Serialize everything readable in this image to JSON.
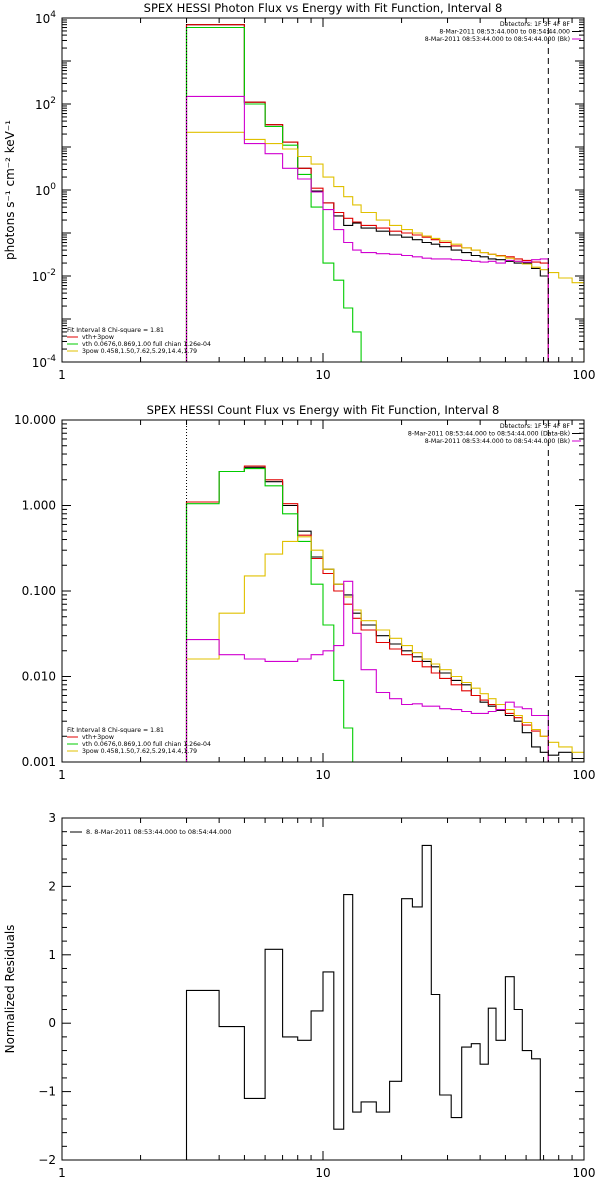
{
  "chart_data": [
    {
      "type": "line",
      "title": "SPEX HESSI Photon Flux vs Energy with Fit Function, Interval 8",
      "ylabel": "photons s⁻¹ cm⁻² keV⁻¹",
      "xscale": "log",
      "yscale": "log",
      "xlim": [
        1,
        100
      ],
      "ylim": [
        0.0001,
        10000
      ],
      "xticks": [
        {
          "v": 1,
          "label": "1"
        },
        {
          "v": 10,
          "label": "10"
        },
        {
          "v": 100,
          "label": "100"
        }
      ],
      "yticks": [
        {
          "v": 0.0001,
          "base": "10",
          "exp": "-4"
        },
        {
          "v": 0.01,
          "base": "10",
          "exp": "-2"
        },
        {
          "v": 1,
          "base": "10",
          "exp": "0"
        },
        {
          "v": 100,
          "base": "10",
          "exp": "2"
        },
        {
          "v": 10000,
          "base": "10",
          "exp": "4"
        }
      ],
      "vlines": [
        {
          "x": 3,
          "style": "dotted",
          "color": "#000000"
        },
        {
          "x": 73,
          "style": "dashed",
          "color": "#000000"
        }
      ],
      "legend_top": [
        "Detectors: 1F 3F 4F 8F",
        "8-Mar-2011 08:53:44.000 to 08:54:44.000",
        "8-Mar-2011 08:53:44.000 to 08:54:44.000 (Bk)"
      ],
      "legend_top_colors": [
        "",
        "#000000",
        "#d000d0"
      ],
      "legend_bottom": [
        {
          "text": "Fit Interval 8    Chi-square = 1.81",
          "color": ""
        },
        {
          "text": "vth+3pow",
          "color": "#e00000"
        },
        {
          "text": "vth 0.0676,0.869,1.00  full chian 1.26e-04",
          "color": "#00cc00"
        },
        {
          "text": "3pow 0.458,1.50,7.62,5.29,14.4,1.79",
          "color": "#e0c000"
        }
      ],
      "series": [
        {
          "color": "#000000",
          "edges": [
            3,
            4,
            5,
            6,
            7,
            8,
            9,
            10,
            11,
            12,
            13,
            14,
            16,
            18,
            20,
            22,
            24,
            26,
            28,
            31,
            34,
            37,
            40,
            43,
            46,
            50,
            54,
            58,
            63,
            68,
            73
          ],
          "values": [
            7000,
            7000,
            110,
            33,
            13,
            3.2,
            0.95,
            0.5,
            0.25,
            0.15,
            0.17,
            0.13,
            0.11,
            0.09,
            0.08,
            0.07,
            0.06,
            0.055,
            0.048,
            0.04,
            0.035,
            0.03,
            0.028,
            0.025,
            0.024,
            0.022,
            0.02,
            0.02,
            0.015,
            0.01
          ]
        },
        {
          "color": "#e00000",
          "edges": [
            3,
            4,
            5,
            6,
            7,
            8,
            9,
            10,
            11,
            12,
            13,
            14,
            16,
            18,
            20,
            22,
            24,
            26,
            28,
            31,
            34,
            37,
            40,
            43,
            46,
            50,
            54,
            58,
            63,
            68,
            73
          ],
          "values": [
            7000,
            7000,
            110,
            33,
            13,
            3.2,
            1.1,
            0.5,
            0.3,
            0.22,
            0.18,
            0.15,
            0.13,
            0.11,
            0.1,
            0.09,
            0.08,
            0.07,
            0.06,
            0.05,
            0.045,
            0.04,
            0.035,
            0.032,
            0.03,
            0.028,
            0.025,
            0.023,
            0.021,
            0.02
          ]
        },
        {
          "color": "#00cc00",
          "edges": [
            3,
            4,
            5,
            6,
            7,
            8,
            9,
            10,
            11,
            12,
            13,
            14,
            16
          ],
          "values": [
            6000,
            6000,
            100,
            30,
            11,
            2.3,
            0.4,
            0.02,
            0.008,
            0.0018,
            0.0005,
            0.0001
          ]
        },
        {
          "color": "#e0c000",
          "edges": [
            3,
            4,
            5,
            6,
            7,
            8,
            9,
            10,
            11,
            12,
            13,
            14,
            16,
            18,
            20,
            22,
            24,
            26,
            28,
            31,
            34,
            37,
            40,
            43,
            46,
            50,
            54,
            58,
            63,
            68,
            73,
            80,
            90,
            100
          ],
          "values": [
            22,
            22,
            15,
            12,
            9,
            6,
            4,
            2,
            1.2,
            0.7,
            0.45,
            0.3,
            0.2,
            0.15,
            0.12,
            0.1,
            0.085,
            0.075,
            0.065,
            0.055,
            0.045,
            0.04,
            0.035,
            0.032,
            0.029,
            0.026,
            0.022,
            0.019,
            0.016,
            0.014,
            0.012,
            0.009,
            0.007
          ]
        },
        {
          "color": "#d000d0",
          "edges": [
            3,
            4,
            5,
            6,
            7,
            8,
            9,
            10,
            11,
            12,
            13,
            14,
            16,
            18,
            20,
            22,
            24,
            26,
            28,
            31,
            34,
            37,
            40,
            43,
            46,
            50,
            54,
            58,
            63,
            68,
            73
          ],
          "values": [
            150,
            150,
            12,
            7,
            3.2,
            1.8,
            0.9,
            0.35,
            0.12,
            0.06,
            0.04,
            0.035,
            0.033,
            0.032,
            0.03,
            0.028,
            0.026,
            0.025,
            0.025,
            0.024,
            0.023,
            0.022,
            0.021,
            0.022,
            0.02,
            0.023,
            0.022,
            0.021,
            0.024,
            0.025
          ]
        }
      ]
    },
    {
      "type": "line",
      "title": "SPEX HESSI Count Flux vs Energy with Fit Function, Interval 8",
      "ylabel": "",
      "xscale": "log",
      "yscale": "log",
      "xlim": [
        1,
        100
      ],
      "ylim": [
        0.001,
        10
      ],
      "xticks": [
        {
          "v": 1,
          "label": "1"
        },
        {
          "v": 10,
          "label": "10"
        },
        {
          "v": 100,
          "label": "100"
        }
      ],
      "yticks": [
        {
          "v": 0.001,
          "label": "0.001"
        },
        {
          "v": 0.01,
          "label": "0.010"
        },
        {
          "v": 0.1,
          "label": "0.100"
        },
        {
          "v": 1,
          "label": "1.000"
        },
        {
          "v": 10,
          "label": "10.000"
        }
      ],
      "vlines": [
        {
          "x": 3,
          "style": "dotted",
          "color": "#000000"
        },
        {
          "x": 73,
          "style": "dashed",
          "color": "#000000"
        }
      ],
      "legend_top": [
        "Detectors: 1F 3F 4F 8F",
        "8-Mar-2011 08:53:44.000 to 08:54:44.000 (Data-Bk)",
        "8-Mar-2011 08:53:44.000 to 08:54:44.000 (Bk)"
      ],
      "legend_top_colors": [
        "",
        "#000000",
        "#d000d0"
      ],
      "legend_bottom": [
        {
          "text": "Fit Interval 8    Chi-square = 1.81",
          "color": ""
        },
        {
          "text": "vth+3pow",
          "color": "#e00000"
        },
        {
          "text": "vth 0.0676,0.869,1.00  full chian 1.26e-04",
          "color": "#00cc00"
        },
        {
          "text": "3pow 0.458,1.50,7.62,5.29,14.4,1.79",
          "color": "#e0c000"
        }
      ],
      "series": [
        {
          "color": "#000000",
          "edges": [
            3,
            4,
            5,
            6,
            7,
            8,
            9,
            10,
            11,
            12,
            13,
            14,
            16,
            18,
            20,
            22,
            24,
            26,
            28,
            31,
            34,
            37,
            40,
            43,
            46,
            50,
            54,
            58,
            63,
            68,
            73,
            80,
            90,
            100
          ],
          "values": [
            1.1,
            2.5,
            2.8,
            1.9,
            1.0,
            0.5,
            0.25,
            0.18,
            0.12,
            0.09,
            0.055,
            0.04,
            0.03,
            0.024,
            0.02,
            0.017,
            0.015,
            0.013,
            0.011,
            0.009,
            0.008,
            0.006,
            0.005,
            0.0045,
            0.004,
            0.0035,
            0.003,
            0.0022,
            0.0015,
            0.0013,
            0.0012,
            0.0013,
            0.0011
          ]
        },
        {
          "color": "#e00000",
          "edges": [
            3,
            4,
            5,
            6,
            7,
            8,
            9,
            10,
            11,
            12,
            13,
            14,
            16,
            18,
            20,
            22,
            24,
            26,
            28,
            31,
            34,
            37,
            40,
            43,
            46,
            50,
            54,
            58,
            63,
            68,
            73
          ],
          "values": [
            1.1,
            2.5,
            2.9,
            2.0,
            1.05,
            0.45,
            0.24,
            0.16,
            0.1,
            0.07,
            0.048,
            0.035,
            0.025,
            0.021,
            0.018,
            0.015,
            0.013,
            0.011,
            0.0095,
            0.008,
            0.0068,
            0.006,
            0.0053,
            0.0047,
            0.0041,
            0.0037,
            0.0033,
            0.0027,
            0.0023,
            0.002
          ]
        },
        {
          "color": "#00cc00",
          "edges": [
            3,
            4,
            5,
            6,
            7,
            8,
            9,
            10,
            11,
            12,
            13,
            14
          ],
          "values": [
            1.05,
            2.5,
            2.7,
            1.7,
            0.8,
            0.38,
            0.12,
            0.04,
            0.009,
            0.0025,
            0.001
          ]
        },
        {
          "color": "#e0c000",
          "edges": [
            3,
            4,
            5,
            6,
            7,
            8,
            9,
            10,
            11,
            12,
            13,
            14,
            16,
            18,
            20,
            22,
            24,
            26,
            28,
            31,
            34,
            37,
            40,
            43,
            46,
            50,
            54,
            58,
            63,
            68,
            73,
            80,
            90,
            100
          ],
          "values": [
            0.016,
            0.055,
            0.15,
            0.27,
            0.38,
            0.43,
            0.3,
            0.18,
            0.12,
            0.085,
            0.06,
            0.045,
            0.035,
            0.028,
            0.023,
            0.019,
            0.016,
            0.014,
            0.012,
            0.01,
            0.0085,
            0.0073,
            0.0063,
            0.0055,
            0.0047,
            0.0041,
            0.0035,
            0.0029,
            0.0024,
            0.002,
            0.0017,
            0.0015,
            0.0013
          ]
        },
        {
          "color": "#d000d0",
          "edges": [
            3,
            4,
            5,
            6,
            7,
            8,
            9,
            10,
            11,
            12,
            13,
            14,
            16,
            18,
            20,
            22,
            24,
            26,
            28,
            31,
            34,
            37,
            40,
            43,
            46,
            50,
            54,
            58,
            63,
            68,
            73
          ],
          "values": [
            0.027,
            0.018,
            0.016,
            0.015,
            0.015,
            0.016,
            0.018,
            0.02,
            0.023,
            0.13,
            0.032,
            0.012,
            0.0065,
            0.0055,
            0.0047,
            0.0048,
            0.0045,
            0.0045,
            0.0042,
            0.0041,
            0.0039,
            0.0037,
            0.0037,
            0.0039,
            0.0041,
            0.005,
            0.0044,
            0.0042,
            0.0035,
            0.0035
          ]
        }
      ]
    },
    {
      "type": "line",
      "title": "",
      "ylabel": "Normalized Residuals",
      "xscale": "log",
      "yscale": "linear",
      "xlim": [
        1,
        100
      ],
      "ylim": [
        -2,
        3
      ],
      "xticks": [
        {
          "v": 1,
          "label": "1"
        },
        {
          "v": 10,
          "label": "10"
        },
        {
          "v": 100,
          "label": "100"
        }
      ],
      "yticks": [
        {
          "v": -2,
          "label": "−2"
        },
        {
          "v": -1,
          "label": "−1"
        },
        {
          "v": 0,
          "label": "0"
        },
        {
          "v": 1,
          "label": "1"
        },
        {
          "v": 2,
          "label": "2"
        },
        {
          "v": 3,
          "label": "3"
        }
      ],
      "vlines": [],
      "legend_top": [],
      "legend_left": "8.  8-Mar-2011 08:53:44.000 to 08:54:44.000",
      "series": [
        {
          "color": "#000000",
          "edges": [
            3,
            4,
            5,
            6,
            7,
            8,
            9,
            10,
            11,
            12,
            13,
            14,
            16,
            18,
            20,
            22,
            24,
            26,
            28,
            31,
            34,
            37,
            40,
            43,
            46,
            50,
            54,
            58,
            63,
            68,
            73
          ],
          "values": [
            0.48,
            -0.05,
            -1.1,
            1.08,
            -0.2,
            -0.25,
            0.18,
            0.75,
            -1.55,
            1.88,
            -1.3,
            -1.15,
            -1.3,
            -0.85,
            1.82,
            1.7,
            2.6,
            0.42,
            -1.05,
            -1.38,
            -0.35,
            -0.3,
            -0.6,
            0.22,
            -0.25,
            0.68,
            0.2,
            -0.4,
            -0.52,
            -2.0
          ]
        }
      ]
    }
  ]
}
